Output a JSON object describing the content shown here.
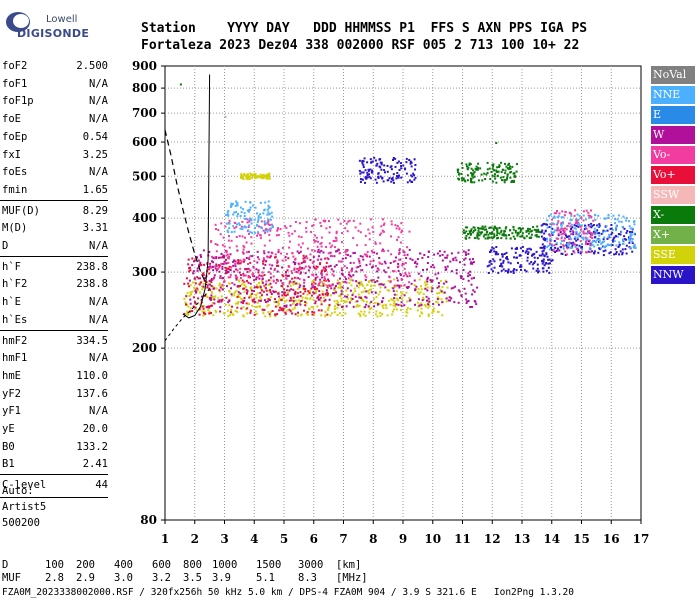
{
  "logo": {
    "top": "Lowell",
    "brand": "DIGISONDE"
  },
  "header": {
    "line1": "Station    YYYY DAY   DDD HHMMSS P1  FFS S AXN PPS IGA PS",
    "line2": "Fortaleza 2023 Dez04 338 002000 RSF 005 2 713 100 10+ 22"
  },
  "params": [
    {
      "label": "foF2",
      "value": "2.500"
    },
    {
      "label": "foF1",
      "value": "N/A"
    },
    {
      "label": "foF1p",
      "value": "N/A"
    },
    {
      "label": "foE",
      "value": "N/A"
    },
    {
      "label": "foEp",
      "value": "0.54"
    },
    {
      "label": "fxI",
      "value": "3.25"
    },
    {
      "label": "foEs",
      "value": "N/A"
    },
    {
      "label": "fmin",
      "value": "1.65"
    },
    {
      "label": "MUF(D)",
      "value": "8.29"
    },
    {
      "label": "M(D)",
      "value": "3.31"
    },
    {
      "label": "D",
      "value": "N/A"
    },
    {
      "label": "h`F",
      "value": "238.8"
    },
    {
      "label": "h`F2",
      "value": "238.8"
    },
    {
      "label": "h`E",
      "value": "N/A"
    },
    {
      "label": "h`Es",
      "value": "N/A"
    },
    {
      "label": "hmF2",
      "value": "334.5"
    },
    {
      "label": "hmF1",
      "value": "N/A"
    },
    {
      "label": "hmE",
      "value": "110.0"
    },
    {
      "label": "yF2",
      "value": "137.6"
    },
    {
      "label": "yF1",
      "value": "N/A"
    },
    {
      "label": "yE",
      "value": "20.0"
    },
    {
      "label": "B0",
      "value": "133.2"
    },
    {
      "label": "B1",
      "value": "2.41"
    },
    {
      "label": "C-level",
      "value": "44"
    }
  ],
  "auto_notes": [
    "Auto:",
    "Artist5",
    "500200"
  ],
  "legend": [
    {
      "label": "NoVal",
      "color": "#808080"
    },
    {
      "label": "NNE",
      "color": "#4ab0ff"
    },
    {
      "label": "E",
      "color": "#2a8ae8"
    },
    {
      "label": "W",
      "color": "#b0109a"
    },
    {
      "label": "Vo-",
      "color": "#f23ca0"
    },
    {
      "label": "Vo+",
      "color": "#e8103a"
    },
    {
      "label": "SSW",
      "color": "#f5b8b8"
    },
    {
      "label": "X-",
      "color": "#0a7a0a"
    },
    {
      "label": "X+",
      "color": "#72b04a"
    },
    {
      "label": "SSE",
      "color": "#d2d20a"
    },
    {
      "label": "NNW",
      "color": "#2a14c8"
    }
  ],
  "footer": {
    "d_label": "D",
    "d_values": [
      "100",
      "200",
      "400",
      "600",
      "800",
      "1000",
      "1500",
      "3000"
    ],
    "d_unit": "[km]",
    "muf_label": "MUF",
    "muf_values": [
      "2.8",
      "2.9",
      "3.0",
      "3.2",
      "3.5",
      "3.9",
      "5.1",
      "8.3"
    ],
    "muf_unit": "[MHz]",
    "info": "FZA0M_2023338002000.RSF / 320fx256h 50 kHz 5.0 km / DPS-4 FZA0M 904 / 3.9 S 321.6 E   Ion2Png 1.3.20"
  },
  "chart_data": {
    "type": "scatter",
    "x_ticks": [
      "1",
      "2",
      "3",
      "4",
      "5",
      "6",
      "7",
      "8",
      "9",
      "10",
      "11",
      "12",
      "13",
      "14",
      "15",
      "16",
      "17"
    ],
    "y_ticks": [
      "80",
      "200",
      "300",
      "400",
      "500",
      "600",
      "700",
      "800",
      "900"
    ],
    "xlim": [
      1,
      17
    ],
    "ylim": [
      80,
      900
    ],
    "y_scale": "log",
    "grid": true,
    "legend_position": "right",
    "traces": [
      {
        "name": "ordinary trace F2",
        "points": [
          [
            1.6,
            240
          ],
          [
            1.8,
            235
          ],
          [
            2.0,
            238
          ],
          [
            2.2,
            250
          ],
          [
            2.35,
            275
          ],
          [
            2.45,
            320
          ],
          [
            2.5,
            860
          ]
        ]
      },
      {
        "name": "trace dashed",
        "points": [
          [
            1.0,
            640
          ],
          [
            1.2,
            560
          ],
          [
            1.4,
            480
          ],
          [
            1.6,
            420
          ],
          [
            1.8,
            370
          ],
          [
            2.0,
            330
          ],
          [
            2.2,
            300
          ],
          [
            2.4,
            280
          ]
        ]
      },
      {
        "name": "trace lower",
        "points": [
          [
            1.0,
            208
          ],
          [
            1.3,
            222
          ],
          [
            1.6,
            235
          ],
          [
            2.0,
            250
          ],
          [
            2.3,
            262
          ],
          [
            2.5,
            275
          ]
        ]
      }
    ],
    "clusters": [
      {
        "color": "#d2d20a",
        "x": [
          1.6,
          10.5
        ],
        "y": [
          238,
          290
        ]
      },
      {
        "color": "#e8103a",
        "x": [
          1.6,
          6.5
        ],
        "y": [
          240,
          330
        ]
      },
      {
        "color": "#b0109a",
        "x": [
          1.8,
          11.5
        ],
        "y": [
          250,
          340
        ]
      },
      {
        "color": "#f23ca0",
        "x": [
          2.5,
          9.2
        ],
        "y": [
          280,
          400
        ]
      },
      {
        "color": "#4ab0ff",
        "x": [
          3.0,
          4.6
        ],
        "y": [
          370,
          440
        ]
      },
      {
        "color": "#2a14c8",
        "x": [
          7.5,
          9.4
        ],
        "y": [
          485,
          555
        ]
      },
      {
        "color": "#0a7a0a",
        "x": [
          10.8,
          12.8
        ],
        "y": [
          485,
          540
        ]
      },
      {
        "color": "#0a7a0a",
        "x": [
          11.0,
          13.6
        ],
        "y": [
          360,
          385
        ]
      },
      {
        "color": "#2a14c8",
        "x": [
          11.8,
          14.0
        ],
        "y": [
          300,
          345
        ]
      },
      {
        "color": "#2a14c8",
        "x": [
          13.6,
          16.8
        ],
        "y": [
          330,
          390
        ]
      },
      {
        "color": "#4ab0ff",
        "x": [
          13.8,
          16.8
        ],
        "y": [
          340,
          410
        ]
      },
      {
        "color": "#f23ca0",
        "x": [
          13.9,
          15.4
        ],
        "y": [
          330,
          420
        ]
      },
      {
        "color": "#d2d20a",
        "x": [
          3.5,
          4.5
        ],
        "y": [
          495,
          510
        ]
      }
    ]
  }
}
